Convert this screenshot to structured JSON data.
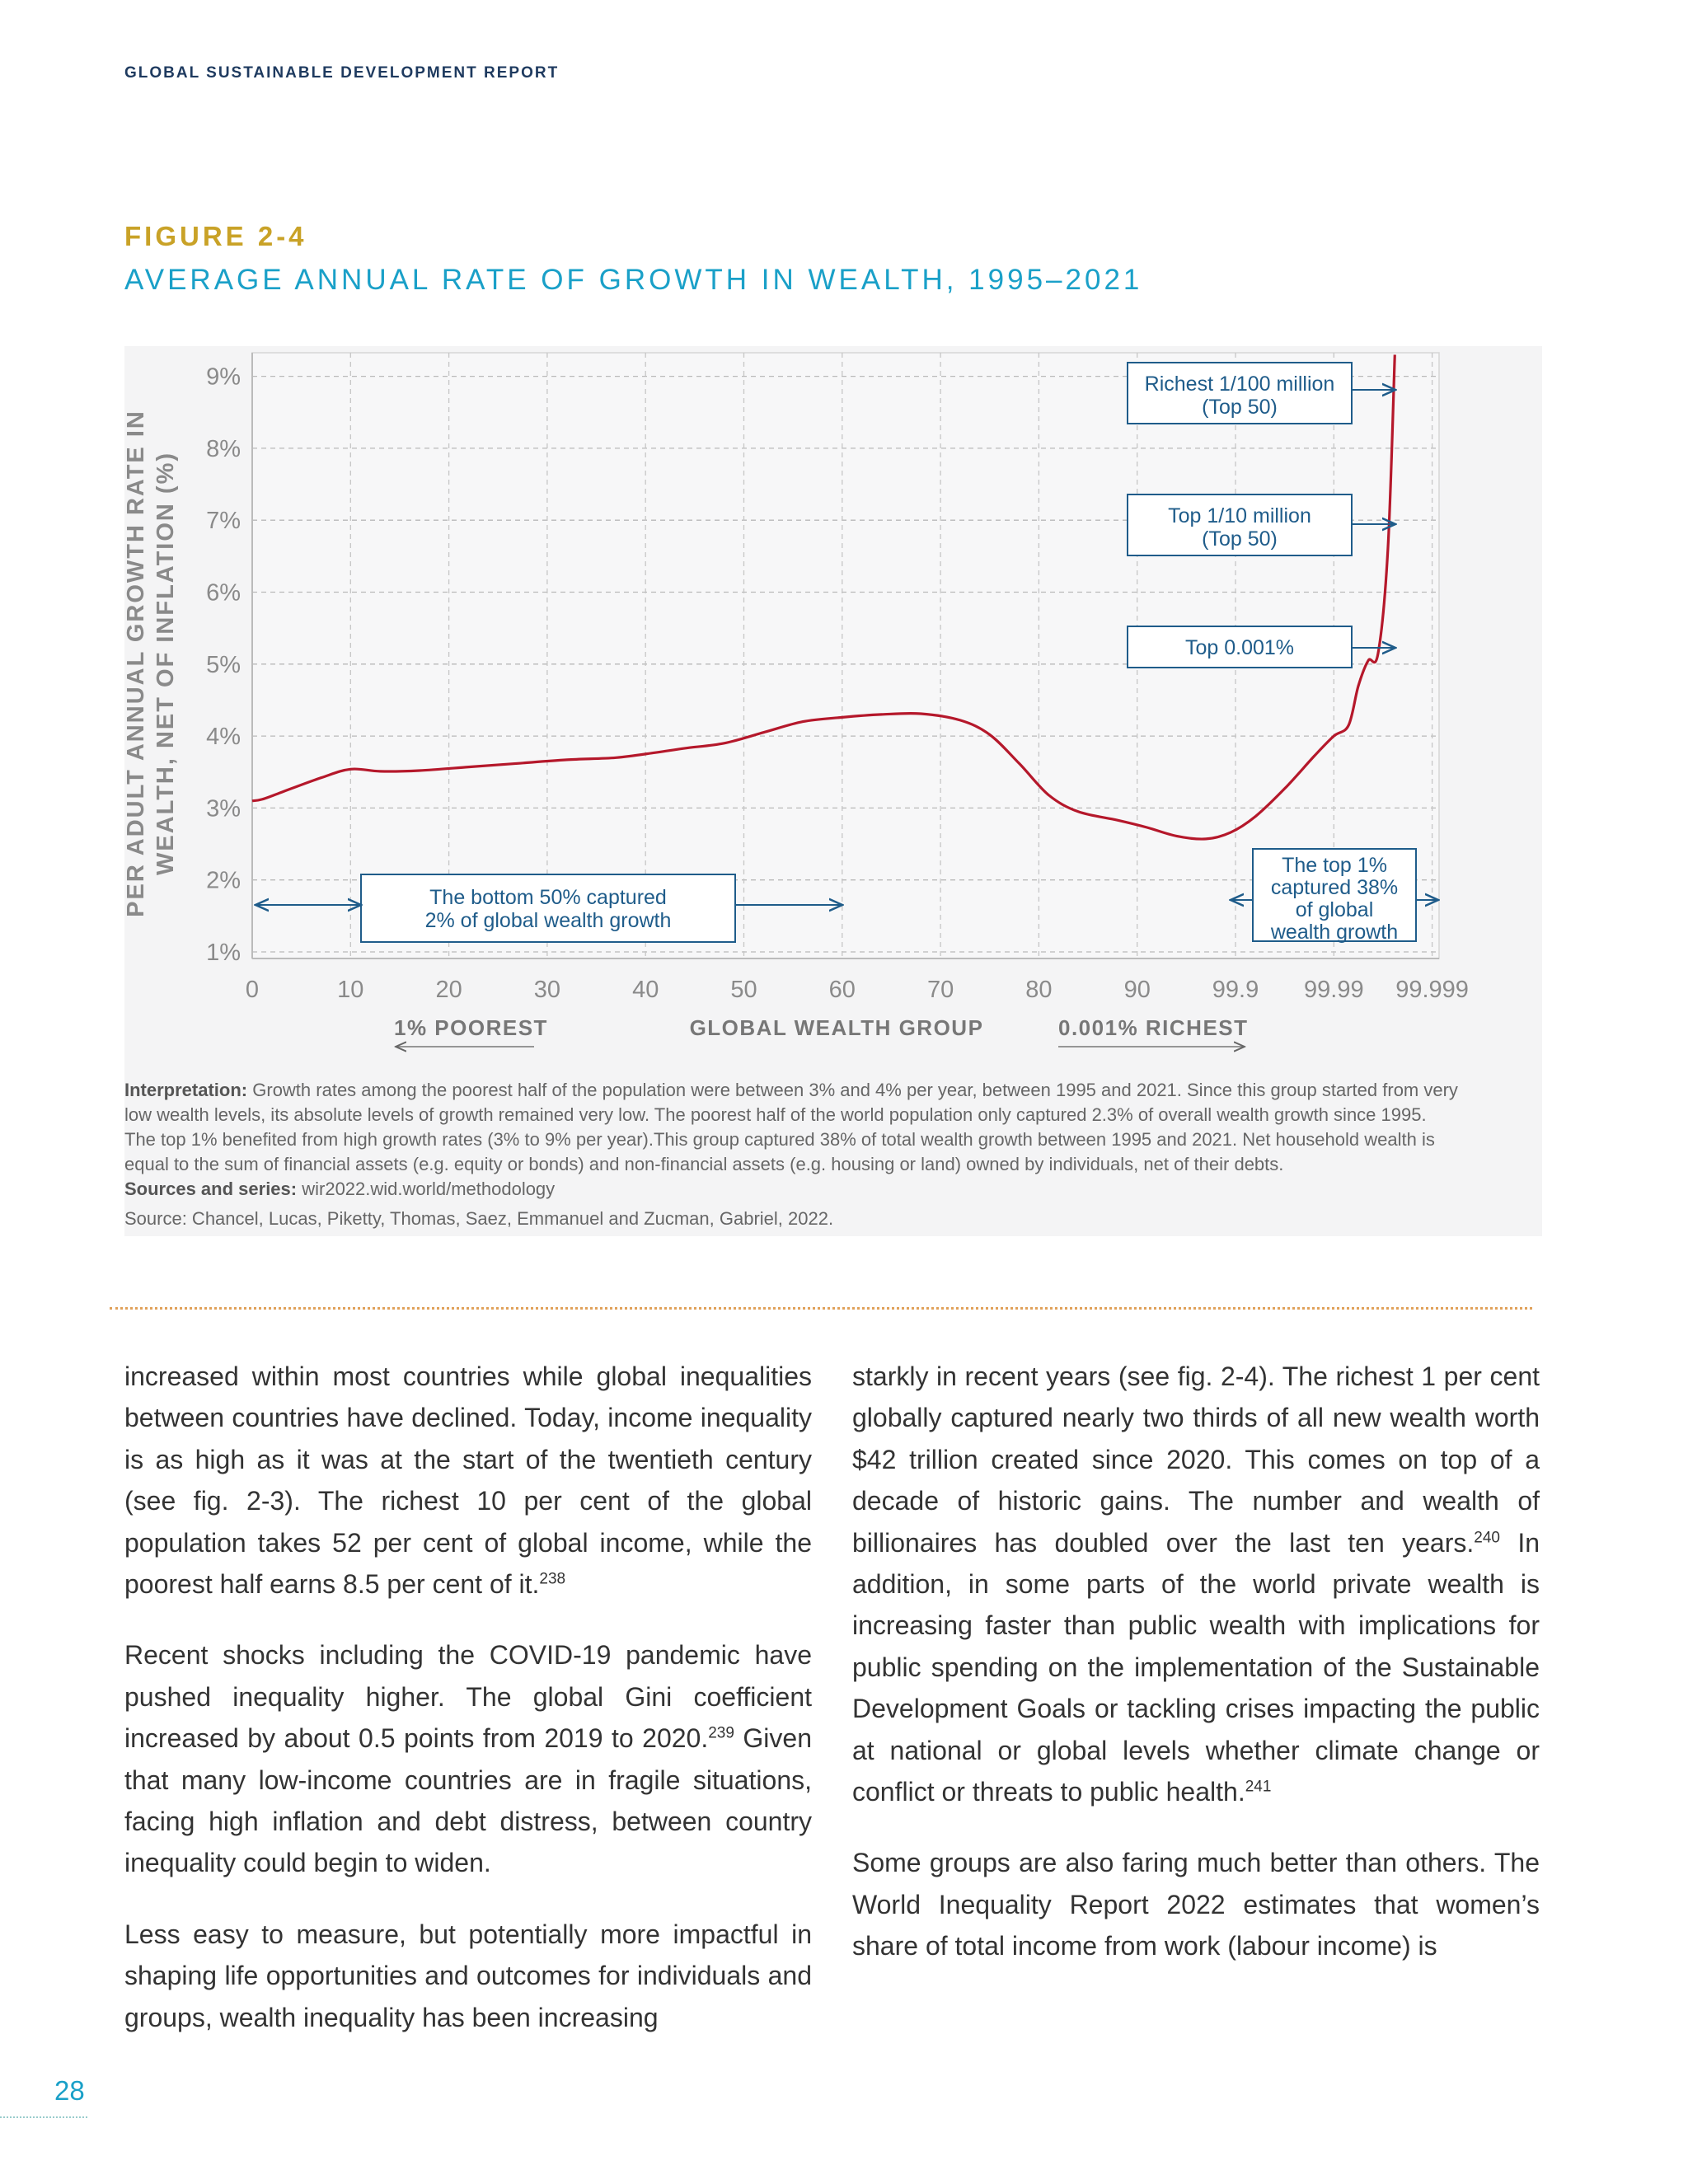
{
  "header": {
    "report_title": "GLOBAL SUSTAINABLE DEVELOPMENT REPORT"
  },
  "figure": {
    "number": "FIGURE 2-4",
    "title": "AVERAGE ANNUAL RATE OF GROWTH IN WEALTH, 1995–2021",
    "annotations": {
      "bottom50": [
        "The bottom 50% captured",
        "2% of global wealth growth"
      ],
      "top1": [
        "The top 1%",
        "captured 38%",
        "of global",
        "wealth growth"
      ],
      "richest": [
        "Richest 1/100 million",
        "(Top 50)"
      ],
      "top10m": [
        "Top 1/10 million",
        "(Top 50)"
      ],
      "top0001": [
        "Top 0.001%"
      ]
    },
    "bottom_labels": {
      "poorest": "1%  POOREST",
      "group": "GLOBAL WEALTH GROUP",
      "richest": "0.001% RICHEST"
    }
  },
  "chart_data": {
    "type": "line",
    "title": "AVERAGE ANNUAL RATE OF GROWTH IN WEALTH, 1995–2021",
    "xlabel": "GLOBAL WEALTH GROUP",
    "ylabel": "PER ADULT ANNUAL GROWTH RATE IN WEALTH, NET OF INFLATION (%)",
    "ylabel_lines": [
      "PER ADULT ANNUAL GROWTH RATE IN",
      "WEALTH, NET OF INFLATION (%)"
    ],
    "x_ticks": [
      "0",
      "10",
      "20",
      "30",
      "40",
      "50",
      "60",
      "70",
      "80",
      "90",
      "99.9",
      "99.99",
      "99.999"
    ],
    "y_ticks": [
      "1%",
      "2%",
      "3%",
      "4%",
      "5%",
      "6%",
      "7%",
      "8%",
      "9%"
    ],
    "ylim": [
      1,
      9.3
    ],
    "grid": true,
    "series_color": "#b5182b",
    "points": [
      [
        0,
        3.1
      ],
      [
        1,
        3.12
      ],
      [
        3,
        3.22
      ],
      [
        7,
        3.42
      ],
      [
        10,
        3.54
      ],
      [
        13,
        3.51
      ],
      [
        17,
        3.52
      ],
      [
        22,
        3.57
      ],
      [
        27,
        3.62
      ],
      [
        32,
        3.67
      ],
      [
        37,
        3.7
      ],
      [
        41,
        3.77
      ],
      [
        44,
        3.83
      ],
      [
        48,
        3.9
      ],
      [
        52,
        4.05
      ],
      [
        56,
        4.2
      ],
      [
        60,
        4.26
      ],
      [
        64,
        4.3
      ],
      [
        68,
        4.31
      ],
      [
        72,
        4.22
      ],
      [
        75,
        4.02
      ],
      [
        78,
        3.62
      ],
      [
        81,
        3.18
      ],
      [
        84,
        2.95
      ],
      [
        88,
        2.83
      ],
      [
        91,
        2.73
      ],
      [
        94,
        2.61
      ],
      [
        97,
        2.57
      ],
      [
        99.5,
        2.66
      ],
      [
        102,
        2.88
      ],
      [
        105,
        3.27
      ],
      [
        108,
        3.72
      ],
      [
        110,
        4.0
      ],
      [
        111.5,
        4.15
      ],
      [
        112.5,
        4.7
      ],
      [
        113.5,
        5.05
      ],
      [
        114.5,
        5.15
      ],
      [
        115.5,
        6.6
      ],
      [
        116.2,
        9.3
      ]
    ]
  },
  "caption": {
    "interp_label": "Interpretation:",
    "interp_text": "Growth rates among the poorest half of the population were between 3% and 4% per year, between 1995 and 2021. Since this group started from very low wealth levels, its absolute levels of growth remained very low. The poorest half of the world population only captured 2.3% of overall wealth growth since 1995. The top 1% benefited from high growth rates (3% to 9% per year).This group captured 38% of total wealth growth between 1995 and 2021. Net household wealth is equal to the sum of financial assets (e.g. equity or bonds) and non-financial assets (e.g. housing or land) owned by individuals, net of their debts.",
    "sources_label": "Sources and series:",
    "sources_text": "wir2022.wid.world/methodology",
    "source_line": "Source: Chancel, Lucas, Piketty, Thomas, Saez, Emmanuel and Zucman, Gabriel, 2022."
  },
  "body": {
    "left_p1": "increased within most countries while global inequalities between countries have declined. Today, income inequality is as high as it was at the start of the twentieth century (see fig. 2-3). The richest 10 per cent of the global population takes 52 per cent of global income, while the poorest half earns 8.5 per cent of it.",
    "left_p1_ref": "238",
    "left_p2a": "Recent shocks including the COVID-19 pandemic have pushed inequality higher. The global Gini coefficient increased by about 0.5 points from 2019 to 2020.",
    "left_p2_ref": "239",
    "left_p2b": " Given that many low-income countries are in fragile situations, facing high inflation and debt distress, between country inequality could begin to widen.",
    "left_p3": "Less easy to measure, but potentially more impactful in shaping life opportunities and outcomes for individuals and groups, wealth inequality has been increasing",
    "right_p1a": "starkly in recent years (see fig. 2-4). The richest 1 per cent globally captured nearly two thirds of all new wealth worth $42 trillion created since 2020. This comes on top of a decade of historic gains. The number and wealth of billionaires has doubled over the last ten years.",
    "right_p1_ref": "240",
    "right_p1b": " In addition, in some parts of the world private wealth is increasing faster than public wealth with implications for public spending on the implementation of the Sustainable Development Goals or tackling crises impacting the public at national or global levels whether climate change or conflict or threats to public health.",
    "right_p1_ref2": "241",
    "right_p2": "Some groups are also faring much better than others. The World Inequality Report 2022 estimates that women’s share of total income from work (labour income) is"
  },
  "footer": {
    "page_number": "28"
  }
}
